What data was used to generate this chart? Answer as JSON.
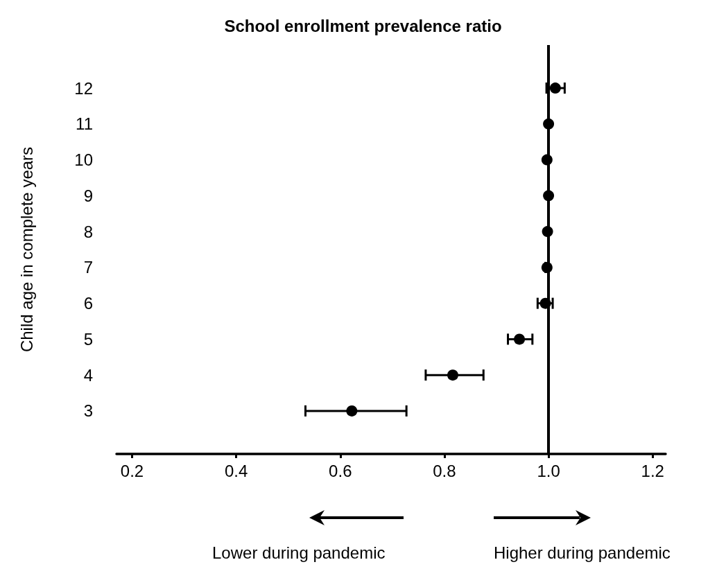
{
  "chart_data": {
    "type": "scatter",
    "title": "School enrollment prevalence ratio",
    "ylabel": "Child age in complete years",
    "orientation": "horizontal",
    "categories": [
      "12",
      "11",
      "10",
      "9",
      "8",
      "7",
      "6",
      "5",
      "4",
      "3"
    ],
    "values": [
      1.013,
      1.0,
      0.997,
      1.0,
      0.998,
      0.997,
      0.994,
      0.944,
      0.816,
      0.622
    ],
    "errors": [
      [
        0.996,
        1.031
      ],
      null,
      null,
      null,
      null,
      [
        0.994,
        1.0
      ],
      [
        0.979,
        1.008
      ],
      [
        0.922,
        0.969
      ],
      [
        0.764,
        0.875
      ],
      [
        0.533,
        0.727
      ]
    ],
    "color": "#000000",
    "marker": "circle",
    "xlim": [
      0.17,
      1.225
    ],
    "xticks": [
      0.2,
      0.4,
      0.6,
      0.8,
      {
        "value": 1,
        "label": "1.0"
      },
      1.2
    ],
    "ref_lines": [
      {
        "axis": "x",
        "value": 1,
        "color": "#000000"
      }
    ],
    "annotations": [
      "Lower during pandemic",
      "Higher during pandemic"
    ]
  }
}
